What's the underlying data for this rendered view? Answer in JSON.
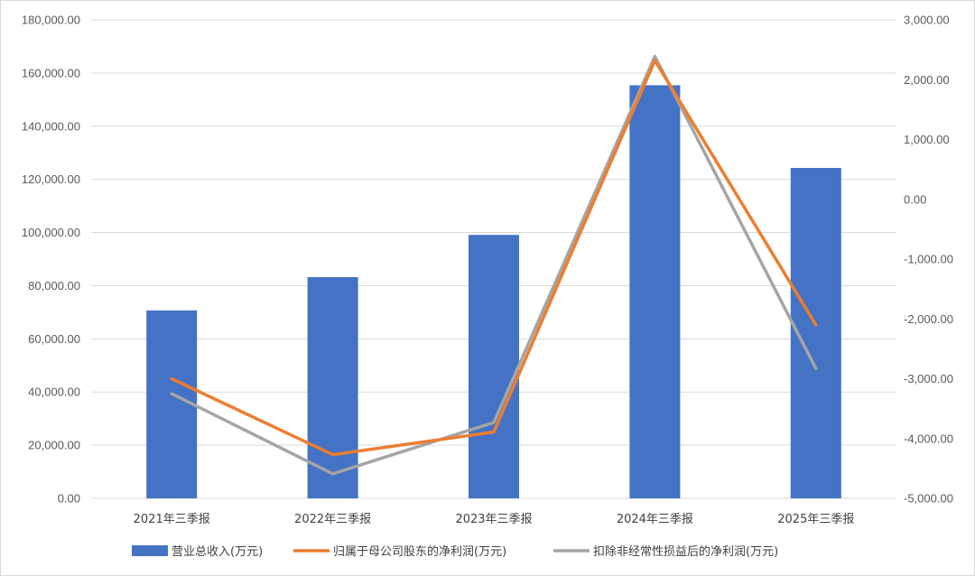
{
  "chart_data": {
    "type": "bar",
    "title": "",
    "categories": [
      "2021年三季报",
      "2022年三季报",
      "2023年三季报",
      "2024年三季报",
      "2025年三季报"
    ],
    "y_left": {
      "min": 0,
      "max": 180000,
      "step": 20000,
      "ticks": [
        "0.00",
        "20,000.00",
        "40,000.00",
        "60,000.00",
        "80,000.00",
        "100,000.00",
        "120,000.00",
        "140,000.00",
        "160,000.00",
        "180,000.00"
      ]
    },
    "y_right": {
      "min": -5000,
      "max": 3000,
      "step": 1000,
      "ticks": [
        "-5,000.00",
        "-4,000.00",
        "-3,000.00",
        "-2,000.00",
        "-1,000.00",
        "0.00",
        "1,000.00",
        "2,000.00",
        "3,000.00"
      ]
    },
    "grid": true,
    "legend_position": "bottom",
    "series": [
      {
        "name": "营业总收入(万元)",
        "type": "bar",
        "axis": "left",
        "color": "#4472C4",
        "values": [
          70700,
          83200,
          99100,
          155400,
          124300
        ]
      },
      {
        "name": "归属于母公司股东的净利润(万元)",
        "type": "line",
        "axis": "right",
        "color": "#ED7D31",
        "values": [
          -3000,
          -4270,
          -3890,
          2320,
          -2100
        ]
      },
      {
        "name": "扣除非经常性损益后的净利润(万元)",
        "type": "line",
        "axis": "right",
        "color": "#A5A5A5",
        "values": [
          -3250,
          -4590,
          -3730,
          2390,
          -2830
        ]
      }
    ]
  }
}
